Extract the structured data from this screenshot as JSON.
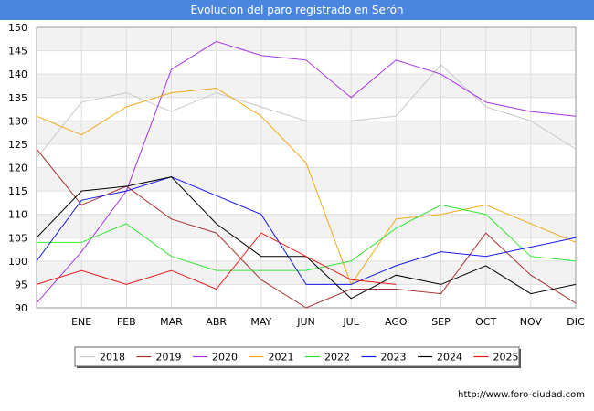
{
  "page": {
    "title": "Evolucion del paro registrado en Serón",
    "footer_url": "http://www.foro-ciudad.com"
  },
  "chart_data": {
    "type": "line",
    "title": "Evolucion del paro registrado en Serón",
    "xlabel": "",
    "ylabel": "",
    "ylim": [
      90,
      150
    ],
    "yticks": [
      90,
      95,
      100,
      105,
      110,
      115,
      120,
      125,
      130,
      135,
      140,
      145,
      150
    ],
    "categories": [
      "",
      "ENE",
      "FEB",
      "MAR",
      "ABR",
      "MAY",
      "JUN",
      "JUL",
      "AGO",
      "SEP",
      "OCT",
      "NOV",
      "DIC"
    ],
    "grid": true,
    "legend_position": "bottom",
    "series": [
      {
        "name": "2018",
        "color": "#c8c8c8",
        "values": [
          122,
          134,
          136,
          132,
          136,
          133,
          130,
          130,
          131,
          142,
          133,
          130,
          124
        ]
      },
      {
        "name": "2019",
        "color": "#a83232",
        "values": [
          124,
          112,
          116,
          109,
          106,
          96,
          90,
          94,
          94,
          93,
          106,
          97,
          91
        ]
      },
      {
        "name": "2020",
        "color": "#a833e6",
        "values": [
          91,
          102,
          115,
          141,
          147,
          144,
          143,
          135,
          143,
          140,
          134,
          132,
          131
        ]
      },
      {
        "name": "2021",
        "color": "#f2a81a",
        "values": [
          131,
          127,
          133,
          136,
          137,
          131,
          121,
          95,
          109,
          110,
          112,
          108,
          104
        ]
      },
      {
        "name": "2022",
        "color": "#33e633",
        "values": [
          104,
          104,
          108,
          101,
          98,
          98,
          98,
          100,
          107,
          112,
          110,
          101,
          100
        ]
      },
      {
        "name": "2023",
        "color": "#1a1ae6",
        "values": [
          100,
          113,
          115,
          118,
          114,
          110,
          95,
          95,
          99,
          102,
          101,
          103,
          105
        ]
      },
      {
        "name": "2024",
        "color": "#000000",
        "values": [
          105,
          115,
          116,
          118,
          108,
          101,
          101,
          92,
          97,
          95,
          99,
          93,
          95
        ]
      },
      {
        "name": "2025",
        "color": "#e61a1a",
        "values": [
          95,
          98,
          95,
          98,
          94,
          106,
          101,
          96,
          95,
          null,
          null,
          null,
          null
        ]
      }
    ]
  }
}
